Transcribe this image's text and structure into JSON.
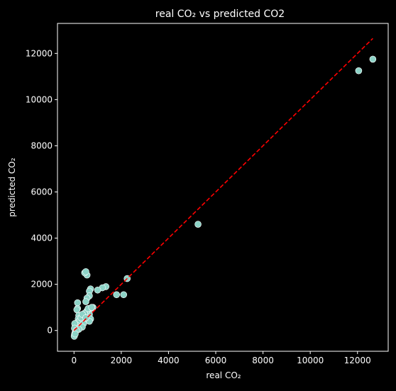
{
  "chart_data": {
    "type": "scatter",
    "title": "real CO₂ vs predicted CO2",
    "xlabel": "real CO₂",
    "ylabel": "predicted CO₂",
    "xlim": [
      -700,
      13300
    ],
    "ylim": [
      -900,
      13300
    ],
    "xticks": [
      0,
      2000,
      4000,
      6000,
      8000,
      10000,
      12000
    ],
    "yticks": [
      0,
      2000,
      4000,
      6000,
      8000,
      10000,
      12000
    ],
    "xtick_labels": [
      "0",
      "2000",
      "4000",
      "6000",
      "8000",
      "10000",
      "12000"
    ],
    "ytick_labels": [
      "0",
      "2000",
      "4000",
      "6000",
      "8000",
      "10000",
      "12000"
    ],
    "grid": false,
    "background": "#000000",
    "point_color": "#8dd3c7",
    "point_edge_color": "#ffffff",
    "line_color": "#ff0000",
    "reference_line": {
      "style": "dashed",
      "x": [
        0,
        12650
      ],
      "y": [
        0,
        12650
      ]
    },
    "points": [
      {
        "x": 12650,
        "y": 11750
      },
      {
        "x": 12050,
        "y": 11250
      },
      {
        "x": 5250,
        "y": 4600
      },
      {
        "x": 2250,
        "y": 2250
      },
      {
        "x": 2100,
        "y": 1550
      },
      {
        "x": 1800,
        "y": 1550
      },
      {
        "x": 1350,
        "y": 1900
      },
      {
        "x": 1200,
        "y": 1850
      },
      {
        "x": 1000,
        "y": 1750
      },
      {
        "x": 700,
        "y": 1800
      },
      {
        "x": 650,
        "y": 1700
      },
      {
        "x": 650,
        "y": 1500
      },
      {
        "x": 550,
        "y": 1400
      },
      {
        "x": 500,
        "y": 1250
      },
      {
        "x": 550,
        "y": 2400
      },
      {
        "x": 450,
        "y": 2500
      },
      {
        "x": 500,
        "y": 2550
      },
      {
        "x": 800,
        "y": 1000
      },
      {
        "x": 700,
        "y": 950
      },
      {
        "x": 600,
        "y": 900
      },
      {
        "x": 650,
        "y": 700
      },
      {
        "x": 700,
        "y": 500
      },
      {
        "x": 650,
        "y": 400
      },
      {
        "x": 550,
        "y": 850
      },
      {
        "x": 450,
        "y": 750
      },
      {
        "x": 400,
        "y": 600
      },
      {
        "x": 350,
        "y": 450
      },
      {
        "x": 300,
        "y": 350
      },
      {
        "x": 250,
        "y": 200
      },
      {
        "x": 150,
        "y": 1200
      },
      {
        "x": 150,
        "y": 950
      },
      {
        "x": 120,
        "y": 900
      },
      {
        "x": 200,
        "y": 650
      },
      {
        "x": 180,
        "y": 500
      },
      {
        "x": 150,
        "y": 350
      },
      {
        "x": 120,
        "y": 250
      },
      {
        "x": 100,
        "y": 150
      },
      {
        "x": 80,
        "y": 50
      },
      {
        "x": 60,
        "y": -50
      },
      {
        "x": 40,
        "y": -100
      },
      {
        "x": 30,
        "y": -150
      },
      {
        "x": 20,
        "y": -200
      },
      {
        "x": 10,
        "y": -250
      },
      {
        "x": 50,
        "y": 200
      },
      {
        "x": 30,
        "y": 300
      },
      {
        "x": 20,
        "y": 100
      },
      {
        "x": 250,
        "y": 450
      },
      {
        "x": 300,
        "y": 550
      },
      {
        "x": 350,
        "y": 700
      },
      {
        "x": 400,
        "y": 300
      },
      {
        "x": 350,
        "y": 150
      },
      {
        "x": 200,
        "y": 50
      },
      {
        "x": 100,
        "y": 0
      },
      {
        "x": 50,
        "y": -150
      },
      {
        "x": 600,
        "y": 950
      },
      {
        "x": 750,
        "y": 1000
      },
      {
        "x": 500,
        "y": 550
      }
    ]
  }
}
